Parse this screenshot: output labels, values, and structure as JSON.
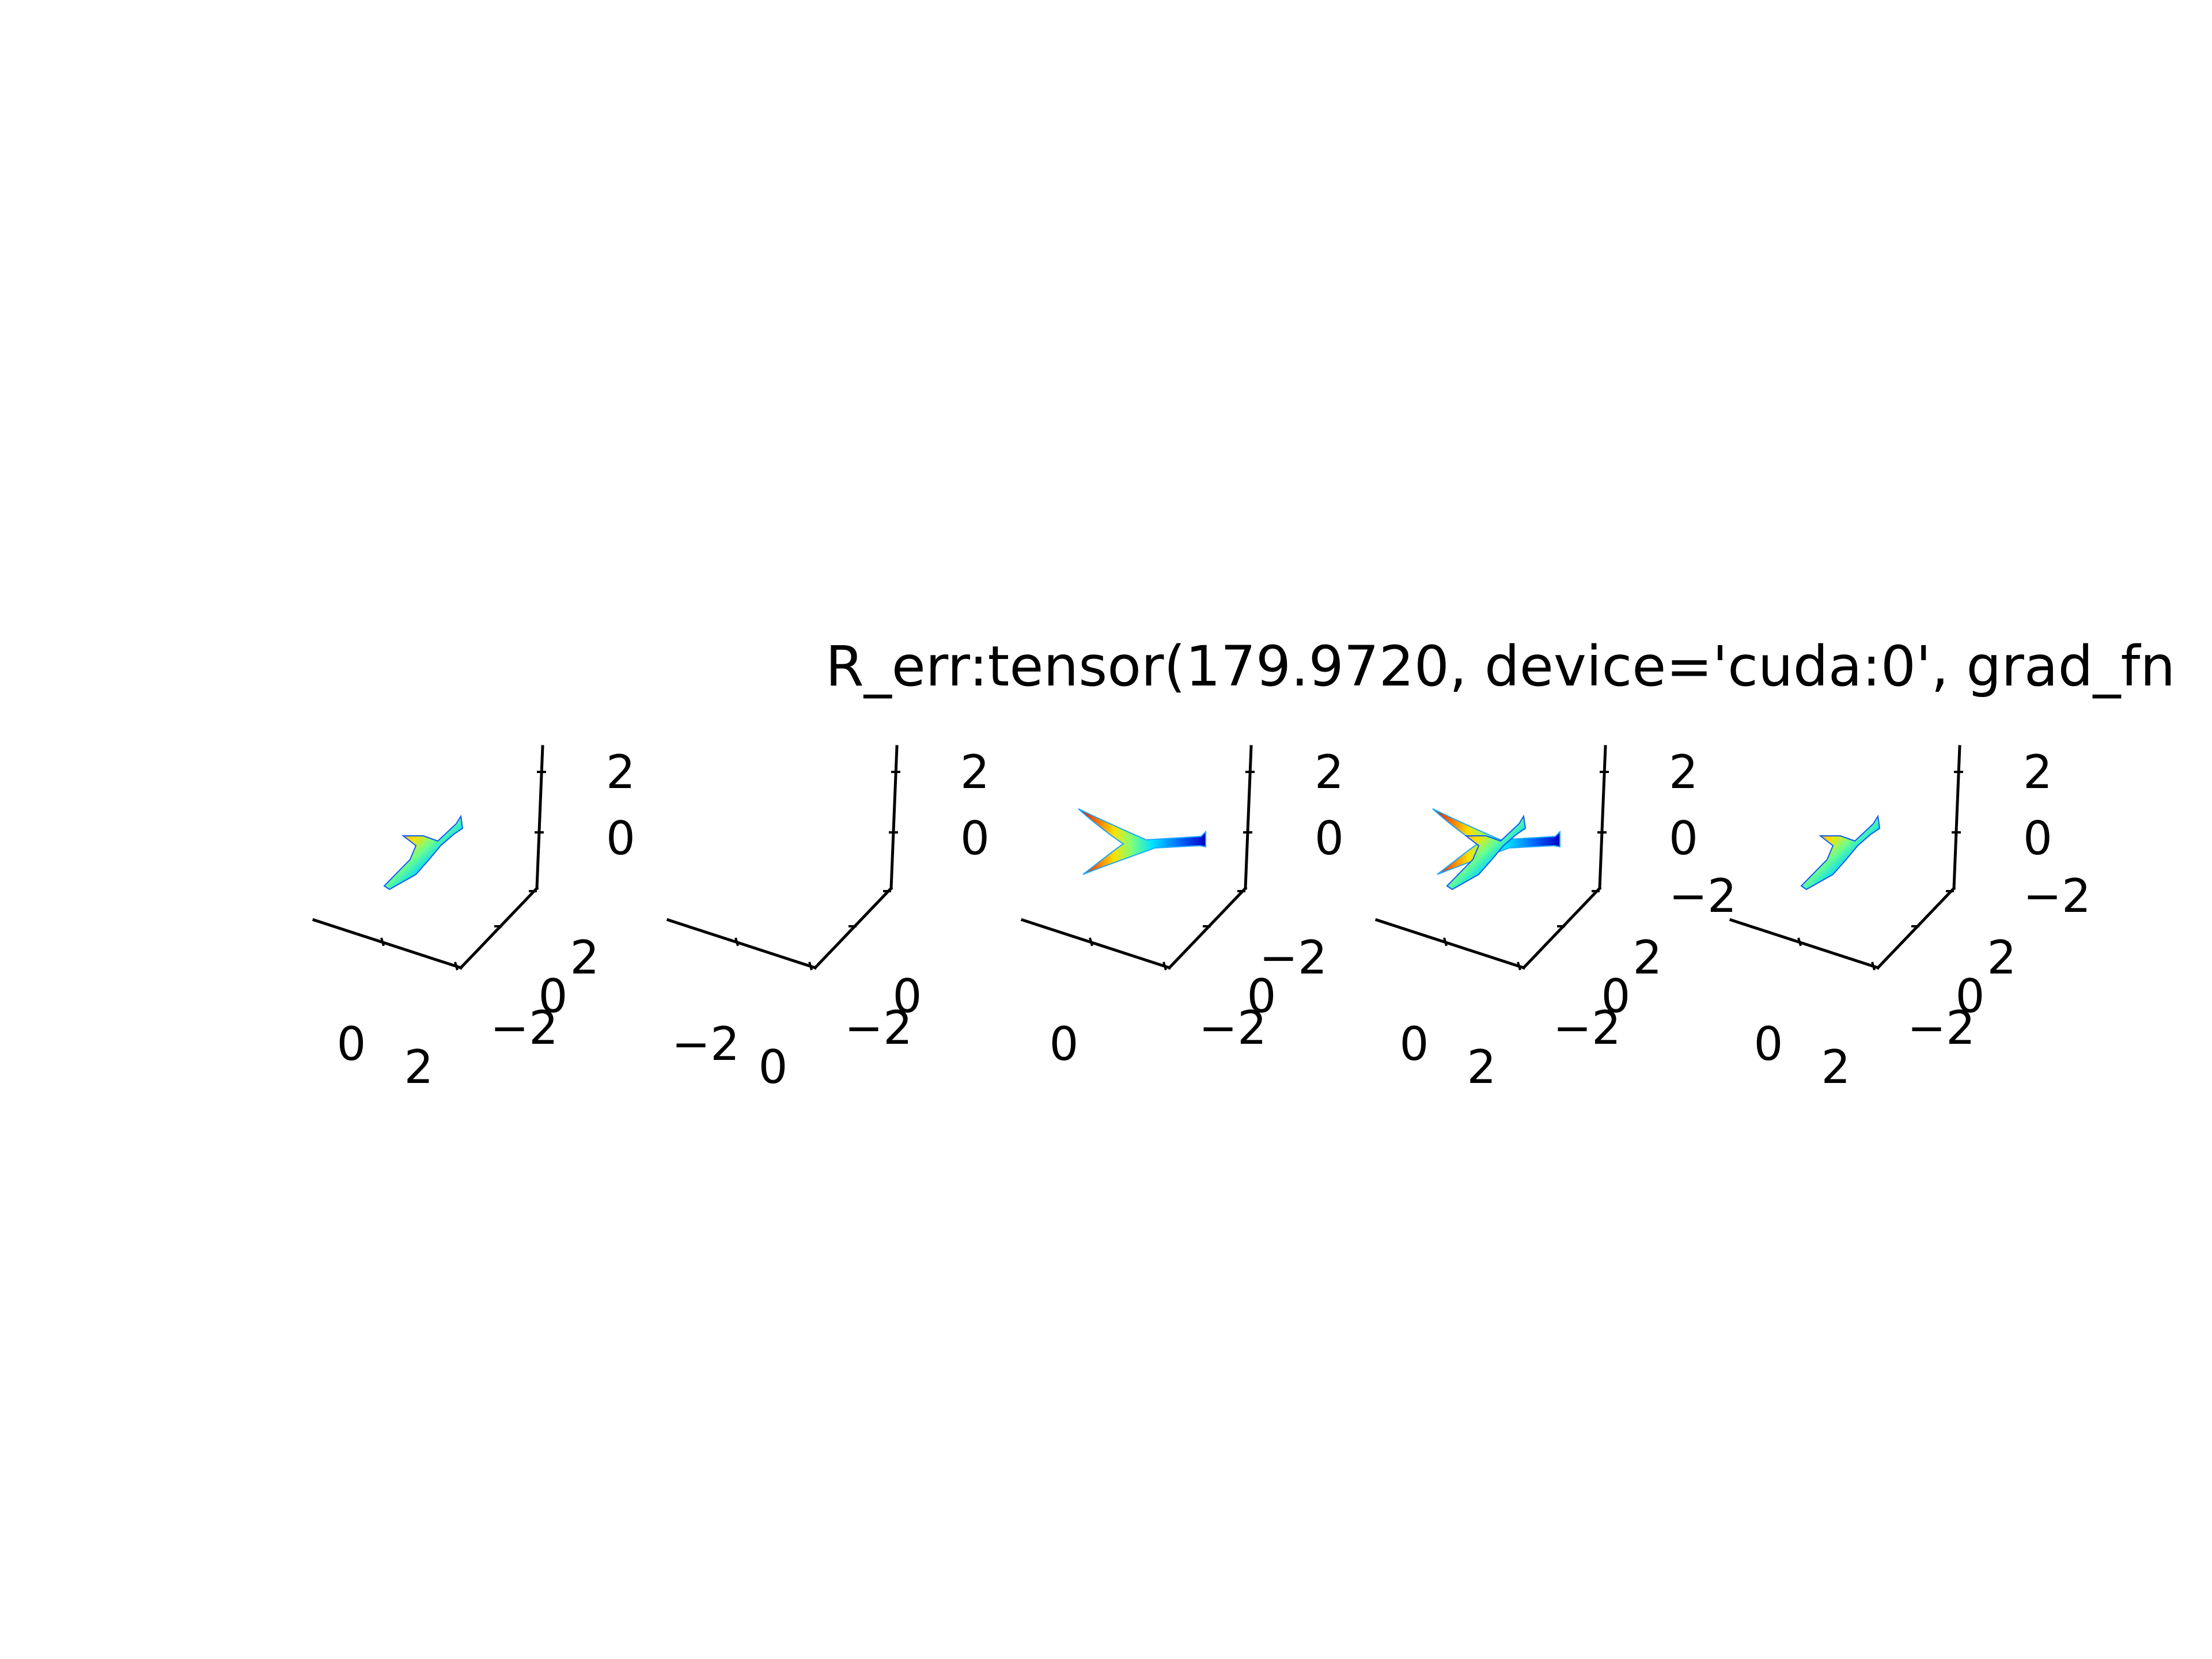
{
  "chart_data": {
    "type": "3d-surface",
    "title": "R_err:tensor(179.9720, device='cuda:0', grad_fn",
    "colormap": "jet",
    "grid": false,
    "panels": [
      {
        "view": "side",
        "shape": "stick",
        "z_ticks": [
          "2",
          "0"
        ],
        "x_ticks": [
          "0",
          "2"
        ],
        "y_ticks": [
          "−2",
          "0",
          "2"
        ]
      },
      {
        "view": "top",
        "shape": "fork",
        "z_ticks": [
          "2",
          "0"
        ],
        "x_ticks": [
          "−2",
          "0"
        ],
        "y_ticks": [
          "−2",
          "0"
        ]
      },
      {
        "view": "top",
        "shape": "fork",
        "z_ticks": [
          "2",
          "0"
        ],
        "x_ticks": [
          "0"
        ],
        "y_ticks": [
          "−2",
          "0",
          "−2"
        ]
      },
      {
        "view": "side",
        "shape": "stick",
        "z_ticks": [
          "2",
          "0",
          "−2"
        ],
        "x_ticks": [
          "0",
          "2"
        ],
        "y_ticks": [
          "−2",
          "0",
          "2"
        ]
      },
      {
        "view": "side",
        "shape": "stick",
        "z_ticks": [
          "2",
          "0",
          "−2"
        ],
        "x_ticks": [
          "0",
          "2"
        ],
        "y_ticks": [
          "−2",
          "0",
          "2"
        ]
      }
    ]
  }
}
